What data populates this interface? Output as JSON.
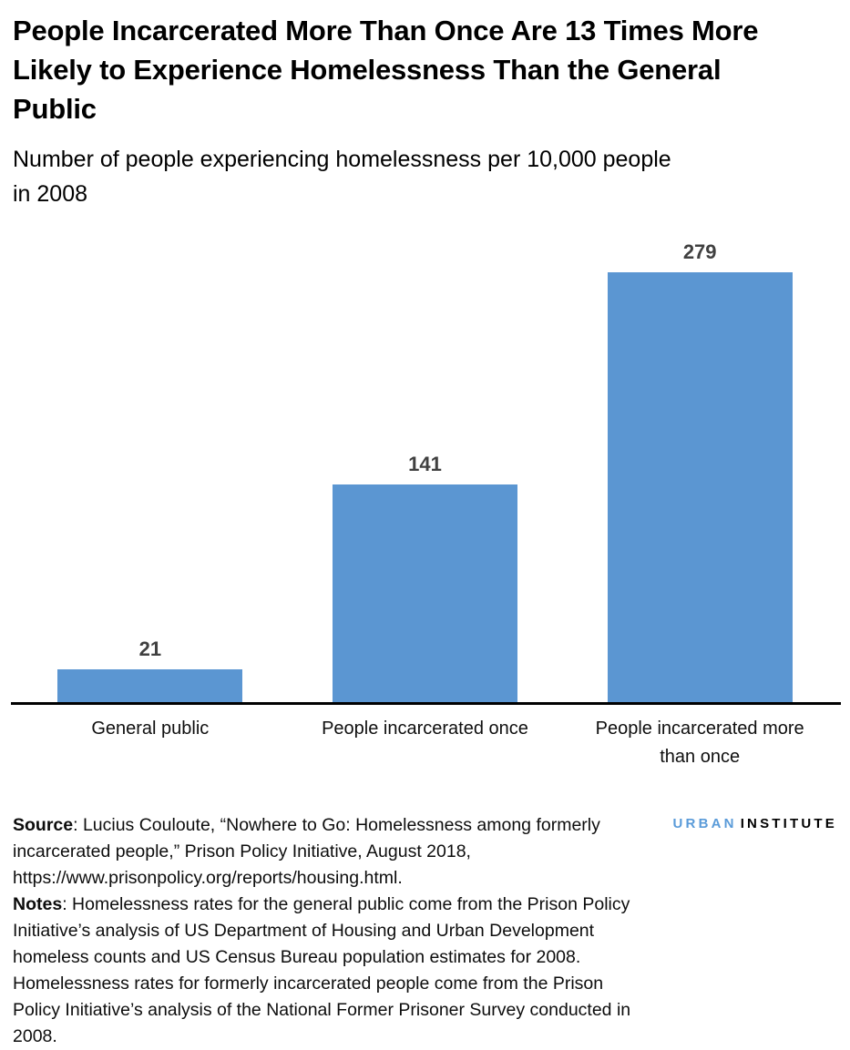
{
  "header": {
    "title": "People Incarcerated More Than Once Are 13 Times More Likely to Experience Homelessness Than the General Public",
    "subtitle": "Number of people experiencing homelessness per 10,000 people in 2008"
  },
  "chart_data": {
    "type": "bar",
    "title": "People Incarcerated More Than Once Are 13 Times More Likely to Experience Homelessness Than the General Public",
    "subtitle": "Number of people experiencing homelessness per 10,000 people in 2008",
    "categories": [
      "General public",
      "People incarcerated once",
      "People incarcerated more than once"
    ],
    "values": [
      21,
      141,
      279
    ],
    "value_labels": [
      "21",
      "141",
      "279"
    ],
    "xlabel": "",
    "ylabel": "Number of people experiencing homelessness per 10,000 people in 2008",
    "ylim": [
      0,
      300
    ],
    "grid": false,
    "legend": "none",
    "bar_color": "#5b96d2",
    "value_label_color": "#404040",
    "axis_color": "#000000"
  },
  "footer": {
    "source_label": "Source",
    "source_text": ": Lucius Couloute, “Nowhere to Go: Homelessness among formerly incarcerated people,” Prison Policy Initiative, August 2018, https://www.prisonpolicy.org/reports/housing.html.",
    "notes_label": "Notes",
    "notes_text": ": Homelessness rates for the general public come from the Prison Policy Initiative’s analysis of US Department of Housing and Urban Development homeless counts and US Census Bureau population estimates for 2008. Homelessness rates for formerly incarcerated people come from the Prison Policy Initiative’s analysis of the National Former Prisoner Survey conducted in 2008.",
    "logo": {
      "part1": "URBAN",
      "part2": "INSTITUTE"
    }
  },
  "colors": {
    "bar": "#5b96d2",
    "logo_blue": "#5a9bd9",
    "value_label": "#404040",
    "axis": "#000000"
  }
}
